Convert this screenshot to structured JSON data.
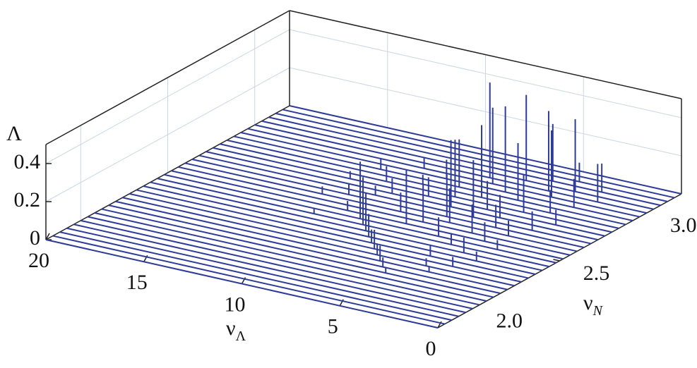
{
  "chart_data": {
    "type": "waterfall3d",
    "x_label": "ν",
    "x_label_sub": "Λ",
    "y_label": "ν",
    "y_label_sub": "N",
    "z_label": "Λ",
    "xlim": [
      0,
      20
    ],
    "xticks": [
      0,
      5,
      10,
      15,
      20
    ],
    "ylim": [
      1.8,
      3.2
    ],
    "yticks": [
      {
        "value": 2,
        "label": "2.0"
      },
      {
        "value": 2.5,
        "label": "2.5"
      },
      {
        "value": 3,
        "label": "3.0"
      }
    ],
    "zlim": [
      0,
      0.5
    ],
    "zticks": [
      0,
      0.2,
      0.4
    ],
    "color": "#2e3b98",
    "grid": true,
    "series": [
      {
        "nu_N": 1.8,
        "x": [],
        "values": []
      },
      {
        "nu_N": 1.84,
        "x": [],
        "values": []
      },
      {
        "nu_N": 1.88,
        "x": [],
        "values": []
      },
      {
        "nu_N": 1.92,
        "x": [],
        "values": []
      },
      {
        "nu_N": 1.96,
        "x": [],
        "values": []
      },
      {
        "nu_N": 2.0,
        "x": [],
        "values": []
      },
      {
        "nu_N": 2.04,
        "x": [],
        "values": []
      },
      {
        "nu_N": 2.08,
        "x": [],
        "values": []
      },
      {
        "nu_N": 2.12,
        "x": [
          5.5
        ],
        "values": [
          0.03
        ]
      },
      {
        "nu_N": 2.16,
        "x": [
          6
        ],
        "values": [
          0.05
        ]
      },
      {
        "nu_N": 2.2,
        "x": [
          6.5,
          4
        ],
        "values": [
          0.08,
          0.03
        ]
      },
      {
        "nu_N": 2.24,
        "x": [
          7,
          4.5
        ],
        "values": [
          0.06,
          0.04
        ]
      },
      {
        "nu_N": 2.28,
        "x": [
          7.5,
          3.5
        ],
        "values": [
          0.1,
          0.05
        ]
      },
      {
        "nu_N": 2.32,
        "x": [
          8,
          5
        ],
        "values": [
          0.07,
          0.06
        ]
      },
      {
        "nu_N": 2.36,
        "x": [
          3,
          8.5
        ],
        "values": [
          0.05,
          0.12
        ]
      },
      {
        "nu_N": 2.4,
        "x": [
          9,
          4
        ],
        "values": [
          0.2,
          0.08
        ]
      },
      {
        "nu_N": 2.44,
        "x": [
          9.5,
          5,
          12
        ],
        "values": [
          0.25,
          0.06,
          0.03
        ]
      },
      {
        "nu_N": 2.48,
        "x": [
          10,
          6,
          3
        ],
        "values": [
          0.3,
          0.1,
          0.05
        ]
      },
      {
        "nu_N": 2.52,
        "x": [
          8,
          4,
          11
        ],
        "values": [
          0.28,
          0.1,
          0.05
        ]
      },
      {
        "nu_N": 2.56,
        "x": [
          7.5,
          5
        ],
        "values": [
          0.2,
          0.15
        ]
      },
      {
        "nu_N": 2.6,
        "x": [
          9,
          6.5,
          3.5,
          13
        ],
        "values": [
          0.1,
          0.18,
          0.08,
          0.04
        ]
      },
      {
        "nu_N": 2.64,
        "x": [
          12,
          7,
          4.5
        ],
        "values": [
          0.06,
          0.22,
          0.12
        ]
      },
      {
        "nu_N": 2.68,
        "x": [
          11,
          6,
          3
        ],
        "values": [
          0.05,
          0.3,
          0.1
        ]
      },
      {
        "nu_N": 2.72,
        "x": [
          10.5,
          7.5,
          5
        ],
        "values": [
          0.08,
          0.35,
          0.12
        ]
      },
      {
        "nu_N": 2.76,
        "x": [
          13,
          9,
          6,
          2.5
        ],
        "values": [
          0.04,
          0.1,
          0.15,
          0.08
        ]
      },
      {
        "nu_N": 2.8,
        "x": [
          11.5,
          8,
          4.5
        ],
        "values": [
          0.08,
          0.3,
          0.2
        ]
      },
      {
        "nu_N": 2.84,
        "x": [
          10,
          7,
          3.5
        ],
        "values": [
          0.05,
          0.38,
          0.12
        ]
      },
      {
        "nu_N": 2.88,
        "x": [
          12.5,
          8.5,
          5.5
        ],
        "values": [
          0.06,
          0.25,
          0.3
        ]
      },
      {
        "nu_N": 2.92,
        "x": [
          9.5,
          6.5,
          3
        ],
        "values": [
          0.1,
          0.45,
          0.15
        ]
      },
      {
        "nu_N": 2.96,
        "x": [
          11,
          7.5,
          4.5
        ],
        "values": [
          0.06,
          0.4,
          0.35
        ]
      },
      {
        "nu_N": 3.0,
        "x": [
          8,
          5,
          2.5
        ],
        "values": [
          0.5,
          0.42,
          0.2
        ]
      },
      {
        "nu_N": 3.04,
        "x": [
          6.5,
          4
        ],
        "values": [
          0.45,
          0.38
        ]
      },
      {
        "nu_N": 3.08,
        "x": [
          5.5,
          3
        ],
        "values": [
          0.3,
          0.15
        ]
      },
      {
        "nu_N": 3.12,
        "x": [
          4.5
        ],
        "values": [
          0.1
        ]
      },
      {
        "nu_N": 3.16,
        "x": [],
        "values": []
      },
      {
        "nu_N": 3.2,
        "x": [],
        "values": []
      }
    ]
  }
}
